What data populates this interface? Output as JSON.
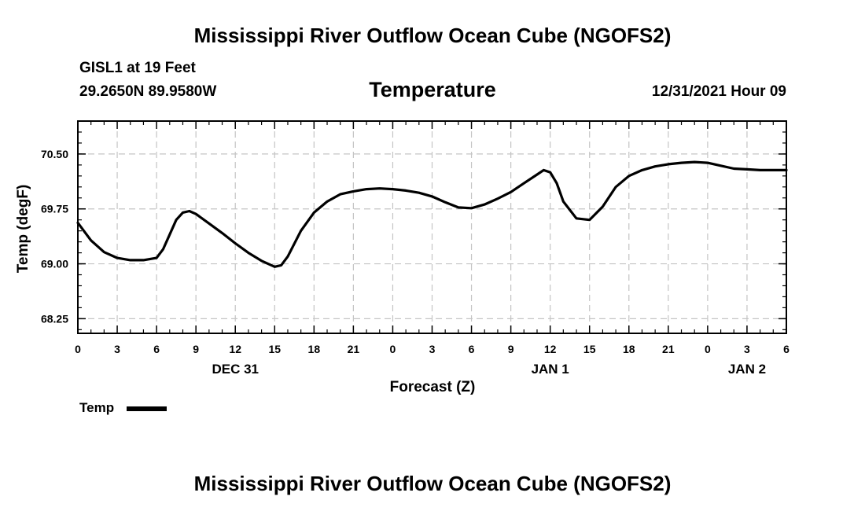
{
  "page": {
    "title_top": "Mississippi River Outflow Ocean Cube (NGOFS2)",
    "title_bottom": "Mississippi River Outflow Ocean Cube (NGOFS2)",
    "station_line1": "GISL1 at 19 Feet",
    "station_line2": "29.2650N  89.9580W",
    "datetime": "12/31/2021 Hour 09"
  },
  "chart_data": {
    "type": "line",
    "title": "Temperature",
    "xlabel": "Forecast (Z)",
    "ylabel": "Temp (degF)",
    "ylim": [
      68.05,
      70.95
    ],
    "xlim": [
      0,
      54
    ],
    "yticks": [
      68.25,
      69.0,
      69.75,
      70.5
    ],
    "ytick_labels": [
      "68.25",
      "69.00",
      "69.75",
      "70.50"
    ],
    "xticks": [
      0,
      3,
      6,
      9,
      12,
      15,
      18,
      21,
      24,
      27,
      30,
      33,
      36,
      39,
      42,
      45,
      48,
      51,
      54
    ],
    "xtick_labels": [
      "0",
      "3",
      "6",
      "9",
      "12",
      "15",
      "18",
      "21",
      "0",
      "3",
      "6",
      "9",
      "12",
      "15",
      "18",
      "21",
      "0",
      "3",
      "6"
    ],
    "date_labels": [
      {
        "x": 12,
        "label": "DEC 31"
      },
      {
        "x": 36,
        "label": "JAN 1"
      },
      {
        "x": 51,
        "label": "JAN 2"
      }
    ],
    "grid": true,
    "legend": "bottom-left",
    "series": [
      {
        "name": "Temp",
        "x": [
          0,
          1,
          2,
          3,
          4,
          5,
          6,
          6.5,
          7,
          7.5,
          8,
          8.5,
          9,
          10,
          11,
          12,
          13,
          14,
          15,
          15.5,
          16,
          17,
          18,
          19,
          20,
          21,
          22,
          23,
          24,
          25,
          26,
          27,
          28,
          29,
          30,
          31,
          32,
          33,
          34,
          35,
          35.5,
          36,
          36.5,
          37,
          38,
          39,
          40,
          41,
          42,
          43,
          44,
          45,
          46,
          47,
          48,
          49,
          50,
          51,
          52,
          53,
          54
        ],
        "values": [
          69.56,
          69.32,
          69.16,
          69.08,
          69.05,
          69.05,
          69.08,
          69.2,
          69.4,
          69.6,
          69.7,
          69.72,
          69.68,
          69.55,
          69.42,
          69.28,
          69.15,
          69.04,
          68.96,
          68.98,
          69.1,
          69.45,
          69.7,
          69.85,
          69.95,
          69.99,
          70.02,
          70.03,
          70.02,
          70.0,
          69.97,
          69.92,
          69.84,
          69.77,
          69.76,
          69.81,
          69.89,
          69.98,
          70.1,
          70.22,
          70.28,
          70.25,
          70.1,
          69.85,
          69.62,
          69.6,
          69.78,
          70.05,
          70.2,
          70.28,
          70.33,
          70.36,
          70.38,
          70.39,
          70.38,
          70.34,
          70.3,
          70.29,
          70.28,
          70.28,
          70.28
        ]
      }
    ]
  }
}
